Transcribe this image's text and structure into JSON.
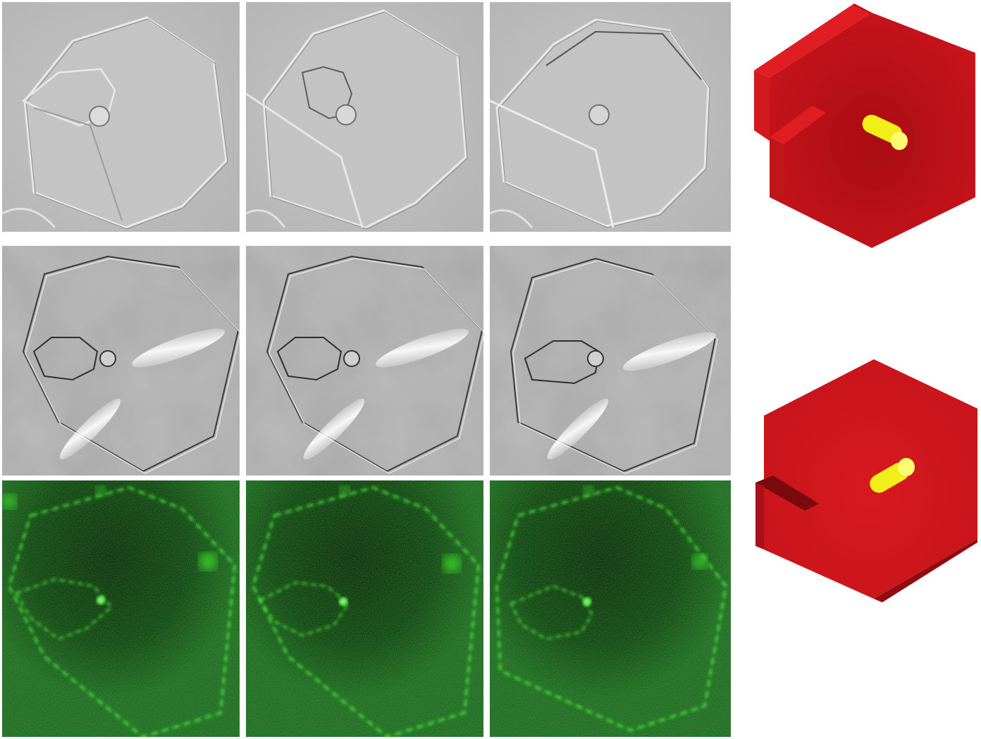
{
  "figure": {
    "background": "#ffffff",
    "rows": [
      {
        "name": "dic-row-1",
        "tone": "gray-light",
        "panels": 3
      },
      {
        "name": "dic-row-2",
        "tone": "gray-dark",
        "panels": 3
      },
      {
        "name": "fluorescence-row",
        "tone": "green",
        "panels": 3
      }
    ],
    "models": [
      {
        "name": "model-partial-slit",
        "plate_color": "#c8141b",
        "rod_color": "#f2ee1a"
      },
      {
        "name": "model-full-slit",
        "plate_color": "#c8141b",
        "rod_color": "#f2ee1a"
      }
    ],
    "colors": {
      "dic_light_bg": "#bfbfbf",
      "dic_dark_bg": "#a9a9a9",
      "fluor_bg": "#0a2a08",
      "fluor_edge": "#4dff3c"
    }
  }
}
